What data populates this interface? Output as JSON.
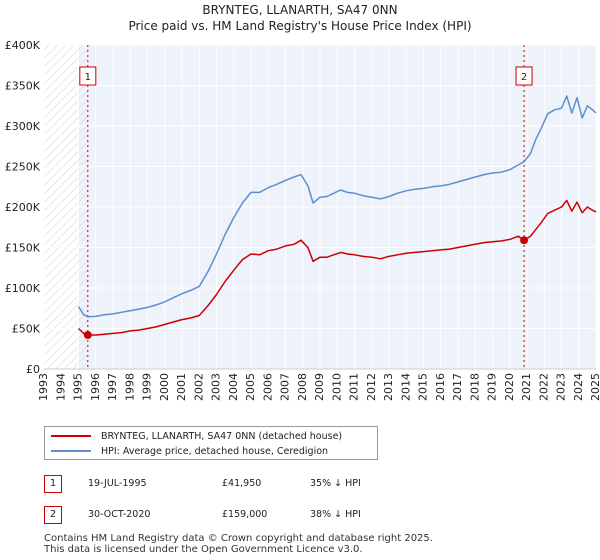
{
  "chart_data": {
    "type": "line",
    "title": "BRYNTEG, LLANARTH, SA47 0NN",
    "subtitle": "Price paid vs. HM Land Registry's House Price Index (HPI)",
    "xlim": [
      1993,
      2025
    ],
    "ylim": [
      0,
      400000
    ],
    "y_ticks": [
      0,
      50000,
      100000,
      150000,
      200000,
      250000,
      300000,
      350000,
      400000
    ],
    "y_tick_labels": [
      "£0",
      "£50K",
      "£100K",
      "£150K",
      "£200K",
      "£250K",
      "£300K",
      "£350K",
      "£400K"
    ],
    "x_ticks": [
      1993,
      1994,
      1995,
      1996,
      1997,
      1998,
      1999,
      2000,
      2001,
      2002,
      2003,
      2004,
      2005,
      2006,
      2007,
      2008,
      2009,
      2010,
      2011,
      2012,
      2013,
      2014,
      2015,
      2016,
      2017,
      2018,
      2019,
      2020,
      2021,
      2022,
      2023,
      2024,
      2025
    ],
    "x_tick_labels": [
      "1993",
      "1994",
      "1995",
      "1996",
      "1997",
      "1998",
      "1999",
      "2000",
      "2001",
      "2002",
      "2003",
      "2004",
      "2005",
      "2006",
      "2007",
      "2008",
      "2009",
      "2010",
      "2011",
      "2012",
      "2013",
      "2014",
      "2015",
      "2016",
      "2017",
      "2018",
      "2019",
      "2020",
      "2021",
      "2022",
      "2023",
      "2024",
      "2025"
    ],
    "grid": true,
    "series": [
      {
        "name": "BRYNTEG, LLANARTH, SA47 0NN (detached house)",
        "color": "#cc0000",
        "x": [
          1995.0,
          1995.3,
          1995.54,
          1996.0,
          1996.5,
          1997.0,
          1997.5,
          1998.0,
          1998.5,
          1999.0,
          1999.5,
          2000.0,
          2000.5,
          2001.0,
          2001.5,
          2002.0,
          2002.5,
          2003.0,
          2003.5,
          2004.0,
          2004.5,
          2005.0,
          2005.5,
          2006.0,
          2006.5,
          2007.0,
          2007.5,
          2007.9,
          2008.3,
          2008.6,
          2009.0,
          2009.4,
          2009.8,
          2010.2,
          2010.6,
          2011.0,
          2011.5,
          2012.0,
          2012.5,
          2013.0,
          2013.5,
          2014.0,
          2014.5,
          2015.0,
          2015.5,
          2016.0,
          2016.5,
          2017.0,
          2017.5,
          2018.0,
          2018.5,
          2019.0,
          2019.5,
          2020.0,
          2020.5,
          2020.83,
          2021.2,
          2021.5,
          2021.8,
          2022.2,
          2022.6,
          2023.0,
          2023.3,
          2023.6,
          2023.9,
          2024.2,
          2024.5,
          2024.8,
          2025.0
        ],
        "values": [
          50000,
          44000,
          41950,
          42000,
          43000,
          44000,
          45000,
          47000,
          48000,
          50000,
          52000,
          55000,
          58000,
          61000,
          63000,
          66000,
          78000,
          92000,
          108000,
          122000,
          135000,
          142000,
          141000,
          146000,
          148000,
          152000,
          154000,
          159000,
          150000,
          133000,
          138000,
          138000,
          141000,
          144000,
          142000,
          141000,
          139000,
          138000,
          136000,
          139000,
          141000,
          143000,
          144000,
          145000,
          146000,
          147000,
          148000,
          150000,
          152000,
          154000,
          156000,
          157000,
          158000,
          160000,
          164000,
          159000,
          164000,
          172000,
          180000,
          192000,
          196000,
          200000,
          208000,
          195000,
          206000,
          193000,
          200000,
          196000,
          194000
        ]
      },
      {
        "name": "HPI: Average price, detached house, Ceredigion",
        "color": "#5b8fd0",
        "x": [
          1995.0,
          1995.3,
          1995.54,
          1996.0,
          1996.5,
          1997.0,
          1997.5,
          1998.0,
          1998.5,
          1999.0,
          1999.5,
          2000.0,
          2000.5,
          2001.0,
          2001.5,
          2002.0,
          2002.5,
          2003.0,
          2003.5,
          2004.0,
          2004.5,
          2005.0,
          2005.5,
          2006.0,
          2006.5,
          2007.0,
          2007.5,
          2007.9,
          2008.3,
          2008.6,
          2009.0,
          2009.4,
          2009.8,
          2010.2,
          2010.6,
          2011.0,
          2011.5,
          2012.0,
          2012.5,
          2013.0,
          2013.5,
          2014.0,
          2014.5,
          2015.0,
          2015.5,
          2016.0,
          2016.5,
          2017.0,
          2017.5,
          2018.0,
          2018.5,
          2019.0,
          2019.5,
          2020.0,
          2020.5,
          2020.83,
          2021.2,
          2021.5,
          2021.8,
          2022.2,
          2022.6,
          2023.0,
          2023.3,
          2023.6,
          2023.9,
          2024.2,
          2024.5,
          2024.8,
          2025.0
        ],
        "values": [
          77000,
          67000,
          64500,
          65000,
          67000,
          68000,
          70000,
          72000,
          74000,
          76000,
          79000,
          83000,
          88000,
          93000,
          97000,
          102000,
          120000,
          142000,
          166000,
          187000,
          205000,
          218000,
          218000,
          224000,
          228000,
          233000,
          237000,
          240000,
          226000,
          205000,
          212000,
          213000,
          217000,
          221000,
          218000,
          217000,
          214000,
          212000,
          210000,
          213000,
          217000,
          220000,
          222000,
          223000,
          225000,
          226000,
          228000,
          231000,
          234000,
          237000,
          240000,
          242000,
          243000,
          246000,
          252000,
          256000,
          266000,
          283000,
          296000,
          315000,
          320000,
          322000,
          337000,
          316000,
          335000,
          310000,
          325000,
          320000,
          316000
        ]
      }
    ],
    "sales": [
      {
        "marker": "1",
        "x": 1995.54,
        "value": 41950
      },
      {
        "marker": "2",
        "x": 2020.83,
        "value": 159000
      }
    ]
  },
  "legend": {
    "property_label": "BRYNTEG, LLANARTH, SA47 0NN (detached house)",
    "hpi_label": "HPI: Average price, detached house, Ceredigion"
  },
  "transactions": [
    {
      "marker": "1",
      "date": "19-JUL-1995",
      "price": "£41,950",
      "hpi": "35% ↓ HPI"
    },
    {
      "marker": "2",
      "date": "30-OCT-2020",
      "price": "£159,000",
      "hpi": "38% ↓ HPI"
    }
  ],
  "footer": {
    "line1": "Contains HM Land Registry data © Crown copyright and database right 2025.",
    "line2": "This data is licensed under the Open Government Licence v3.0."
  },
  "colors": {
    "property": "#cc0000",
    "hpi": "#5b8fd0",
    "plot_bg": "#eef2fa",
    "hatch": "#dddddd"
  }
}
